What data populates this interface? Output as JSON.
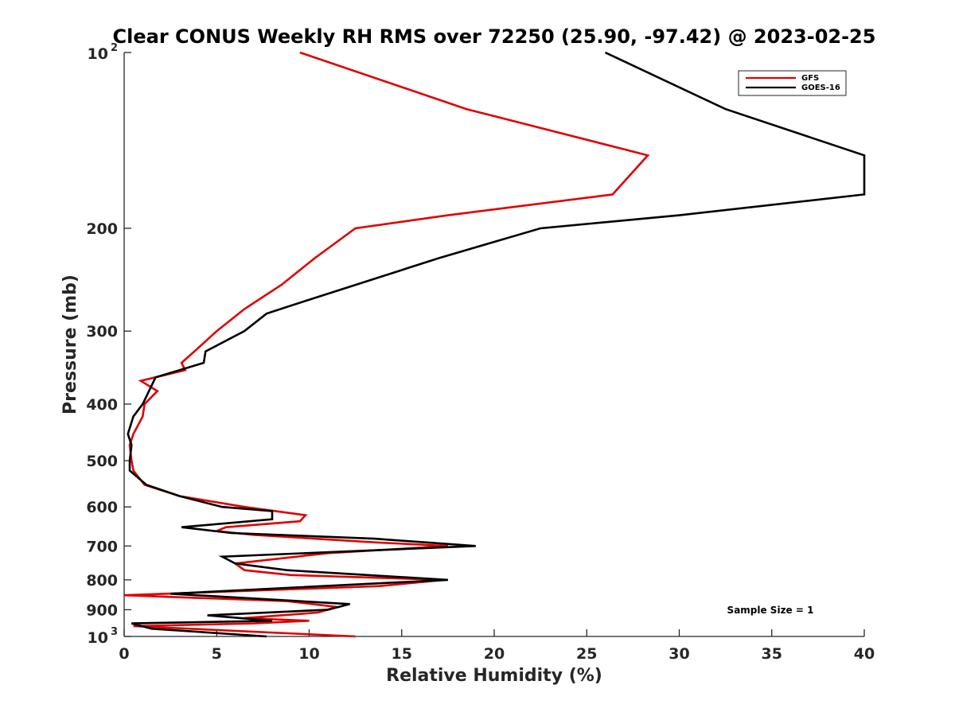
{
  "chart_data": {
    "type": "line",
    "title": "Clear CONUS Weekly RH RMS over 72250 (25.90, -97.42) @ 2023-02-25",
    "xlabel": "Relative Humidity (%)",
    "ylabel": "Pressure (mb)",
    "xlim": [
      0,
      40
    ],
    "ylim": [
      100,
      1000
    ],
    "y_scale": "log",
    "y_reversed": true,
    "x_ticks": [
      0,
      5,
      10,
      15,
      20,
      25,
      30,
      35,
      40
    ],
    "x_tick_labels": [
      "0",
      "5",
      "10",
      "15",
      "20",
      "25",
      "30",
      "35",
      "40"
    ],
    "y_ticks": [
      100,
      200,
      300,
      400,
      500,
      600,
      700,
      800,
      900,
      1000
    ],
    "y_tick_labels": [
      {
        "base": "10",
        "sup": "2"
      },
      {
        "base": "200"
      },
      {
        "base": "300"
      },
      {
        "base": "400"
      },
      {
        "base": "500"
      },
      {
        "base": "600"
      },
      {
        "base": "700"
      },
      {
        "base": "800"
      },
      {
        "base": "900"
      },
      {
        "base": "10",
        "sup": "3"
      }
    ],
    "grid": false,
    "legend_position": "top-right",
    "annotation": "Sample Size = 1",
    "series": [
      {
        "name": "GFS",
        "color": "#e00000",
        "points": [
          [
            9.5,
            100
          ],
          [
            18.5,
            125
          ],
          [
            28.3,
            150
          ],
          [
            26.4,
            175
          ],
          [
            17.5,
            190
          ],
          [
            12.5,
            200
          ],
          [
            10.3,
            225
          ],
          [
            8.5,
            250
          ],
          [
            6.5,
            275
          ],
          [
            5.0,
            300
          ],
          [
            3.8,
            325
          ],
          [
            3.1,
            340
          ],
          [
            3.3,
            350
          ],
          [
            0.9,
            365
          ],
          [
            1.8,
            380
          ],
          [
            1.1,
            400
          ],
          [
            1.0,
            420
          ],
          [
            0.5,
            450
          ],
          [
            0.3,
            470
          ],
          [
            0.4,
            500
          ],
          [
            0.5,
            520
          ],
          [
            1.1,
            550
          ],
          [
            3.0,
            575
          ],
          [
            6.5,
            600
          ],
          [
            9.8,
            620
          ],
          [
            9.5,
            635
          ],
          [
            5.5,
            650
          ],
          [
            5.0,
            660
          ],
          [
            7.0,
            670
          ],
          [
            13.5,
            690
          ],
          [
            17.5,
            700
          ],
          [
            11.0,
            720
          ],
          [
            6.0,
            750
          ],
          [
            6.5,
            770
          ],
          [
            9.0,
            785
          ],
          [
            17.3,
            800
          ],
          [
            13.8,
            820
          ],
          [
            0,
            850
          ],
          [
            8.8,
            870
          ],
          [
            11.5,
            890
          ],
          [
            10.5,
            910
          ],
          [
            6.5,
            930
          ],
          [
            10.0,
            940
          ],
          [
            7.0,
            950
          ],
          [
            0.5,
            960
          ],
          [
            12.5,
            1000
          ]
        ]
      },
      {
        "name": "GOES-16",
        "color": "#000000",
        "points": [
          [
            26.0,
            100
          ],
          [
            32.5,
            125
          ],
          [
            40.0,
            150
          ],
          [
            40.0,
            175
          ],
          [
            30.0,
            190
          ],
          [
            22.5,
            200
          ],
          [
            17.0,
            225
          ],
          [
            12.5,
            250
          ],
          [
            10.0,
            265
          ],
          [
            7.7,
            280
          ],
          [
            6.5,
            300
          ],
          [
            4.4,
            325
          ],
          [
            4.3,
            340
          ],
          [
            1.7,
            360
          ],
          [
            1.0,
            400
          ],
          [
            0.5,
            420
          ],
          [
            0.2,
            450
          ],
          [
            0.4,
            470
          ],
          [
            0.3,
            500
          ],
          [
            0.3,
            520
          ],
          [
            1.2,
            550
          ],
          [
            3.0,
            575
          ],
          [
            5.3,
            600
          ],
          [
            8.0,
            610
          ],
          [
            8.0,
            630
          ],
          [
            3.1,
            650
          ],
          [
            5.8,
            665
          ],
          [
            13.5,
            680
          ],
          [
            19.0,
            700
          ],
          [
            5.3,
            730
          ],
          [
            6.0,
            750
          ],
          [
            8.8,
            770
          ],
          [
            17.5,
            800
          ],
          [
            2.5,
            845
          ],
          [
            12.2,
            880
          ],
          [
            11.0,
            900
          ],
          [
            4.5,
            920
          ],
          [
            8.0,
            940
          ],
          [
            0.4,
            950
          ],
          [
            1.5,
            970
          ],
          [
            7.7,
            1000
          ]
        ]
      }
    ]
  }
}
